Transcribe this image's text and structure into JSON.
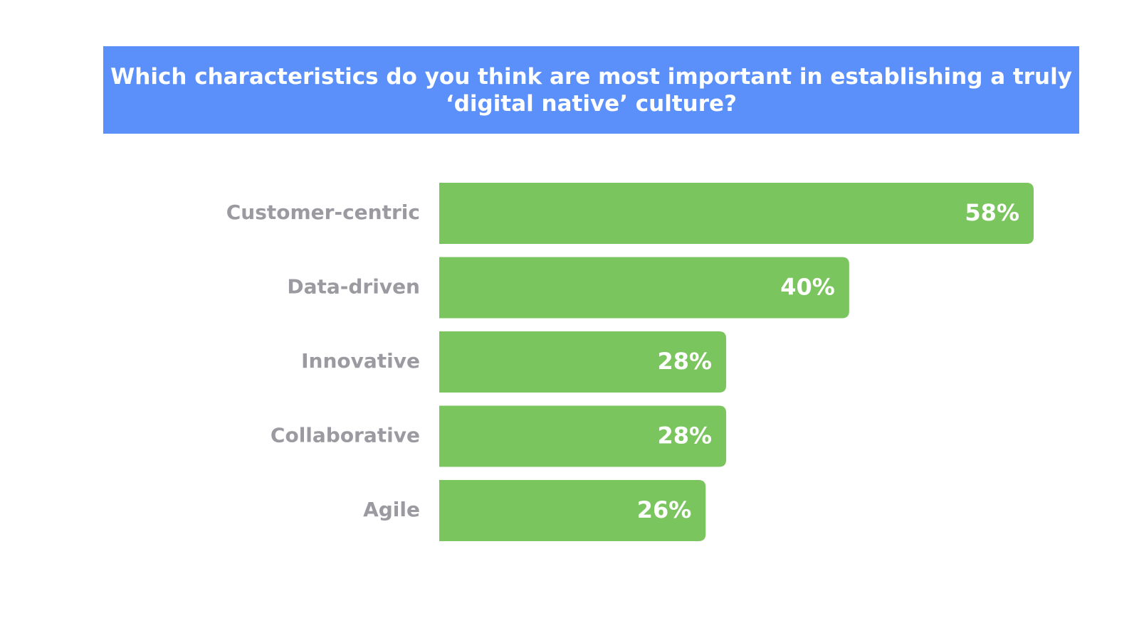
{
  "chart_data": {
    "type": "bar",
    "orientation": "horizontal",
    "title": "Which characteristics do you think are most important in establishing a truly ‘digital native’ culture?",
    "categories": [
      "Customer-centric",
      "Data-driven",
      "Innovative",
      "Collaborative",
      "Agile"
    ],
    "values": [
      58,
      40,
      28,
      28,
      26
    ],
    "value_labels": [
      "58%",
      "40%",
      "28%",
      "28%",
      "26%"
    ],
    "color": "#7bc55f"
  }
}
